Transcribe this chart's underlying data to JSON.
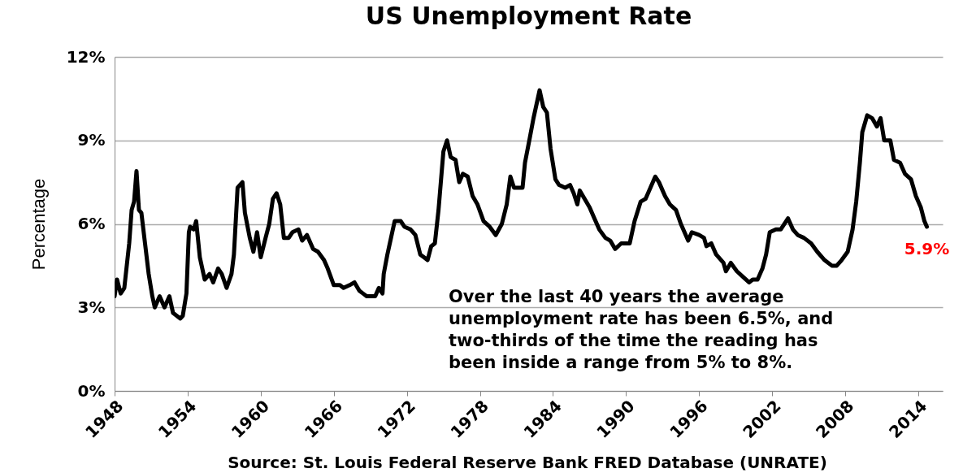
{
  "chart_data": {
    "type": "line",
    "title": "US Unemployment Rate",
    "ylabel": "Percentage",
    "x": [
      1948.0,
      1948.2,
      1948.5,
      1948.8,
      1949.2,
      1949.4,
      1949.6,
      1949.8,
      1950.0,
      1950.2,
      1950.5,
      1950.8,
      1951.1,
      1951.3,
      1951.7,
      1952.1,
      1952.5,
      1952.8,
      1953.4,
      1953.6,
      1953.9,
      1954.1,
      1954.2,
      1954.5,
      1954.7,
      1955.0,
      1955.4,
      1955.8,
      1956.1,
      1956.5,
      1956.8,
      1957.2,
      1957.6,
      1957.8,
      1958.1,
      1958.5,
      1958.7,
      1959.1,
      1959.4,
      1959.7,
      1960.0,
      1960.4,
      1960.7,
      1961.0,
      1961.3,
      1961.6,
      1961.9,
      1962.3,
      1962.6,
      1963.1,
      1963.4,
      1963.8,
      1964.3,
      1964.7,
      1965.2,
      1965.5,
      1966.0,
      1966.5,
      1966.8,
      1967.3,
      1967.7,
      1968.1,
      1968.4,
      1968.7,
      1969.4,
      1969.7,
      1970.0,
      1970.1,
      1970.4,
      1970.7,
      1971.0,
      1971.5,
      1971.8,
      1972.3,
      1972.7,
      1973.1,
      1973.4,
      1973.7,
      1974.0,
      1974.3,
      1974.6,
      1975.0,
      1975.3,
      1975.6,
      1976.0,
      1976.3,
      1976.6,
      1977.0,
      1977.4,
      1977.8,
      1978.3,
      1978.8,
      1979.3,
      1979.8,
      1980.2,
      1980.5,
      1980.8,
      1981.5,
      1981.7,
      1982.1,
      1982.4,
      1982.9,
      1983.2,
      1983.5,
      1983.8,
      1984.2,
      1984.5,
      1985.0,
      1985.4,
      1985.7,
      1986.0,
      1986.2,
      1986.6,
      1987.0,
      1987.4,
      1987.8,
      1988.3,
      1988.7,
      1989.1,
      1989.6,
      1990.3,
      1990.7,
      1991.2,
      1991.6,
      1992.0,
      1992.4,
      1992.7,
      1993.2,
      1993.6,
      1994.1,
      1994.5,
      1995.1,
      1995.4,
      1996.0,
      1996.4,
      1996.6,
      1997.0,
      1997.4,
      1998.0,
      1998.2,
      1998.6,
      1999.1,
      1999.6,
      2000.1,
      2000.4,
      2000.8,
      2001.2,
      2001.5,
      2001.8,
      2002.3,
      2002.7,
      2003.3,
      2003.7,
      2004.1,
      2004.6,
      2005.2,
      2005.7,
      2006.3,
      2006.9,
      2007.3,
      2007.7,
      2008.2,
      2008.6,
      2008.9,
      2009.2,
      2009.4,
      2009.8,
      2010.2,
      2010.6,
      2010.9,
      2011.2,
      2011.7,
      2012.0,
      2012.5,
      2012.9,
      2013.4,
      2013.8,
      2014.2,
      2014.5,
      2014.7
    ],
    "series": [
      {
        "color": "#000000",
        "values": [
          3.4,
          4.0,
          3.5,
          3.7,
          5.3,
          6.5,
          6.8,
          7.9,
          6.5,
          6.4,
          5.3,
          4.2,
          3.4,
          3.0,
          3.4,
          3.0,
          3.4,
          2.8,
          2.6,
          2.7,
          3.5,
          5.7,
          5.9,
          5.8,
          6.1,
          4.8,
          4.0,
          4.2,
          3.9,
          4.4,
          4.2,
          3.7,
          4.2,
          4.9,
          7.3,
          7.5,
          6.4,
          5.5,
          5.0,
          5.7,
          4.8,
          5.5,
          6.0,
          6.9,
          7.1,
          6.7,
          5.5,
          5.5,
          5.7,
          5.8,
          5.4,
          5.6,
          5.1,
          5.0,
          4.7,
          4.4,
          3.8,
          3.8,
          3.7,
          3.8,
          3.9,
          3.6,
          3.5,
          3.4,
          3.4,
          3.7,
          3.5,
          4.2,
          4.9,
          5.5,
          6.1,
          6.1,
          5.9,
          5.8,
          5.6,
          4.9,
          4.8,
          4.7,
          5.2,
          5.3,
          6.5,
          8.6,
          9.0,
          8.4,
          8.3,
          7.5,
          7.8,
          7.7,
          7.0,
          6.7,
          6.1,
          5.9,
          5.6,
          6.0,
          6.7,
          7.7,
          7.3,
          7.3,
          8.2,
          9.1,
          9.8,
          10.8,
          10.2,
          10.0,
          8.7,
          7.6,
          7.4,
          7.3,
          7.4,
          7.1,
          6.7,
          7.2,
          6.9,
          6.6,
          6.2,
          5.8,
          5.5,
          5.4,
          5.1,
          5.3,
          5.3,
          6.1,
          6.8,
          6.9,
          7.3,
          7.7,
          7.5,
          7.0,
          6.7,
          6.5,
          6.0,
          5.4,
          5.7,
          5.6,
          5.5,
          5.2,
          5.3,
          4.9,
          4.6,
          4.3,
          4.6,
          4.3,
          4.1,
          3.9,
          4.0,
          4.0,
          4.4,
          4.9,
          5.7,
          5.8,
          5.8,
          6.2,
          5.8,
          5.6,
          5.5,
          5.3,
          5.0,
          4.7,
          4.5,
          4.5,
          4.7,
          5.0,
          5.8,
          6.8,
          8.2,
          9.3,
          9.9,
          9.8,
          9.5,
          9.8,
          9.0,
          9.0,
          8.3,
          8.2,
          7.8,
          7.6,
          7.0,
          6.6,
          6.1,
          5.9
        ]
      }
    ],
    "xlim": [
      1948,
      2016
    ],
    "xticks": [
      1948,
      1954,
      1960,
      1966,
      1972,
      1978,
      1984,
      1990,
      1996,
      2002,
      2008,
      2014
    ],
    "ylim": [
      0,
      12
    ],
    "yticks": [
      {
        "value": 0,
        "label": "0%"
      },
      {
        "value": 3,
        "label": "3%"
      },
      {
        "value": 6,
        "label": "6%"
      },
      {
        "value": 9,
        "label": "9%"
      },
      {
        "value": 12,
        "label": "12%"
      }
    ],
    "grid": "y",
    "annotations": [
      {
        "text": "5.9%",
        "x": 2014.7,
        "y": 5.9
      },
      "Over the last 40 years the average unemployment rate has been 6.5%, and two-thirds of the time the reading has been inside a range from 5% to 8%.",
      "Source: St. Louis Federal Reserve Bank FRED Database (UNRATE)"
    ]
  }
}
